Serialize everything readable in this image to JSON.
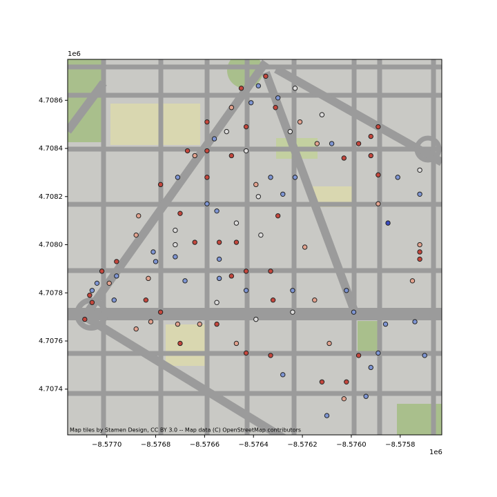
{
  "chart_data": {
    "type": "scatter",
    "x_offset_label": "1e6",
    "y_offset_label": "1e6",
    "attribution": "Map tiles by Stamen Design, CC BY 3.0 -- Map data (C) OpenStreetMap contributors",
    "xlim": [
      -8.57716,
      -8.57563
    ],
    "ylim": [
      4.70721,
      4.70877
    ],
    "xticks": [
      {
        "value": -8.577,
        "label": "−8.5770"
      },
      {
        "value": -8.5768,
        "label": "−8.5768"
      },
      {
        "value": -8.5766,
        "label": "−8.5766"
      },
      {
        "value": -8.5764,
        "label": "−8.5764"
      },
      {
        "value": -8.5762,
        "label": "−8.5762"
      },
      {
        "value": -8.576,
        "label": "−8.5760"
      },
      {
        "value": -8.5758,
        "label": "−8.5758"
      }
    ],
    "yticks": [
      {
        "value": 4.7074,
        "label": "4.7074"
      },
      {
        "value": 4.7076,
        "label": "4.7076"
      },
      {
        "value": 4.7078,
        "label": "4.7078"
      },
      {
        "value": 4.708,
        "label": "4.7080"
      },
      {
        "value": 4.7082,
        "label": "4.7082"
      },
      {
        "value": 4.7084,
        "label": "4.7084"
      },
      {
        "value": 4.7086,
        "label": "4.7086"
      }
    ],
    "x": [
      -8.57635,
      -8.57645,
      -8.57638,
      -8.5763,
      -8.57623,
      -8.57631,
      -8.57641,
      -8.57649,
      -8.57659,
      -8.57651,
      -8.57643,
      -8.57656,
      -8.57625,
      -8.57621,
      -8.57612,
      -8.57614,
      -8.57608,
      -8.57603,
      -8.57597,
      -8.57592,
      -8.57589,
      -8.57592,
      -8.57572,
      -8.57589,
      -8.57581,
      -8.57572,
      -8.57585,
      -8.57589,
      -8.57572,
      -8.57572,
      -8.57572,
      -8.57575,
      -8.57667,
      -8.57659,
      -8.57643,
      -8.57649,
      -8.57664,
      -8.57671,
      -8.57678,
      -8.57659,
      -8.57639,
      -8.57633,
      -8.57623,
      -8.57638,
      -8.57628,
      -8.57659,
      -8.57655,
      -8.5767,
      -8.57687,
      -8.57647,
      -8.5763,
      -8.57672,
      -8.57672,
      -8.57688,
      -8.57681,
      -8.5768,
      -8.57664,
      -8.57654,
      -8.57647,
      -8.57637,
      -8.57619,
      -8.57696,
      -8.57702,
      -8.57696,
      -8.57672,
      -8.57654,
      -8.57643,
      -8.57633,
      -8.57683,
      -8.57699,
      -8.57668,
      -8.57654,
      -8.57649,
      -8.57643,
      -8.57624,
      -8.57602,
      -8.57615,
      -8.57632,
      -8.57655,
      -8.57684,
      -8.57697,
      -8.57706,
      -8.57704,
      -8.57707,
      -8.57706,
      -8.57709,
      -8.57678,
      -8.57682,
      -8.57671,
      -8.57662,
      -8.57655,
      -8.57639,
      -8.57624,
      -8.57599,
      -8.57586,
      -8.57574,
      -8.5757,
      -8.57688,
      -8.5767,
      -8.57647,
      -8.57643,
      -8.57633,
      -8.57609,
      -8.57597,
      -8.57589,
      -8.57592,
      -8.57628,
      -8.57612,
      -8.57602,
      -8.57594,
      -8.57603,
      -8.5761
    ],
    "y": [
      4.7087,
      4.70865,
      4.70866,
      4.70861,
      4.70865,
      4.70857,
      4.70859,
      4.70857,
      4.70851,
      4.70847,
      4.70849,
      4.70844,
      4.70847,
      4.70851,
      4.70854,
      4.70842,
      4.70842,
      4.70836,
      4.70842,
      4.70845,
      4.70849,
      4.70837,
      4.70831,
      4.70829,
      4.70828,
      4.70821,
      4.70809,
      4.70817,
      4.708,
      4.70797,
      4.70794,
      4.70785,
      4.70839,
      4.70839,
      4.70839,
      4.70837,
      4.70837,
      4.70828,
      4.70825,
      4.70828,
      4.70825,
      4.70828,
      4.70828,
      4.7082,
      4.70821,
      4.70817,
      4.70814,
      4.70813,
      4.70812,
      4.70809,
      4.70812,
      4.70806,
      4.708,
      4.70804,
      4.70797,
      4.70793,
      4.70801,
      4.70801,
      4.70801,
      4.70804,
      4.70799,
      4.70793,
      4.70789,
      4.70787,
      4.70795,
      4.70794,
      4.70789,
      4.70789,
      4.70786,
      4.70784,
      4.70785,
      4.70786,
      4.70787,
      4.70781,
      4.70781,
      4.70781,
      4.70777,
      4.70777,
      4.70776,
      4.70777,
      4.70777,
      4.70781,
      4.70784,
      4.70779,
      4.70776,
      4.70769,
      4.70772,
      4.70768,
      4.70767,
      4.70767,
      4.70767,
      4.70769,
      4.70772,
      4.70772,
      4.70767,
      4.70768,
      4.70754,
      4.70765,
      4.70759,
      4.70759,
      4.70755,
      4.70754,
      4.70759,
      4.70754,
      4.70755,
      4.70749,
      4.70746,
      4.70743,
      4.70743,
      4.70737,
      4.70736,
      4.70729
    ],
    "colors": [
      "#c4473d",
      "#c4473d",
      "#7e95d3",
      "#7e95d3",
      "#dddcdc",
      "#c4473d",
      "#7e95d3",
      "#e3a28e",
      "#c4473d",
      "#dddcdc",
      "#c4473d",
      "#7e95d3",
      "#dddcdc",
      "#e3a28e",
      "#dddcdc",
      "#e3a28e",
      "#7e95d3",
      "#c4473d",
      "#c4473d",
      "#c4473d",
      "#c4473d",
      "#c4473d",
      "#dddcdc",
      "#c4473d",
      "#7e95d3",
      "#7e95d3",
      "#3b4cc0",
      "#e3a28e",
      "#e3a28e",
      "#c4473d",
      "#c4473d",
      "#e3a28e",
      "#c4473d",
      "#c4473d",
      "#dddcdc",
      "#c4473d",
      "#e3a28e",
      "#7e95d3",
      "#c4473d",
      "#c4473d",
      "#e3a28e",
      "#7e95d3",
      "#7e95d3",
      "#dddcdc",
      "#7e95d3",
      "#7e95d3",
      "#7e95d3",
      "#c4473d",
      "#e3a28e",
      "#dddcdc",
      "#c4473d",
      "#dddcdc",
      "#dddcdc",
      "#e3a28e",
      "#7e95d3",
      "#7e95d3",
      "#c4473d",
      "#c4473d",
      "#c4473d",
      "#dddcdc",
      "#e3a28e",
      "#c4473d",
      "#c4473d",
      "#7e95d3",
      "#7e95d3",
      "#7e95d3",
      "#c4473d",
      "#c4473d",
      "#e3a28e",
      "#e3a28e",
      "#7e95d3",
      "#7e95d3",
      "#c4473d",
      "#7e95d3",
      "#7e95d3",
      "#7e95d3",
      "#e3a28e",
      "#c4473d",
      "#dddcdc",
      "#c4473d",
      "#7e95d3",
      "#7e95d3",
      "#7e95d3",
      "#c4473d",
      "#c4473d",
      "#c4473d",
      "#c4473d",
      "#e3a28e",
      "#e3a28e",
      "#e3a28e",
      "#c4473d",
      "#dddcdc",
      "#dddcdc",
      "#7e95d3",
      "#7e95d3",
      "#7e95d3",
      "#7e95d3",
      "#e3a28e",
      "#c4473d",
      "#e3a28e",
      "#c4473d",
      "#c4473d",
      "#e3a28e",
      "#c4473d",
      "#7e95d3",
      "#7e95d3",
      "#7e95d3",
      "#c4473d",
      "#c4473d",
      "#7e95d3",
      "#e3a28e",
      "#7e95d3"
    ]
  }
}
